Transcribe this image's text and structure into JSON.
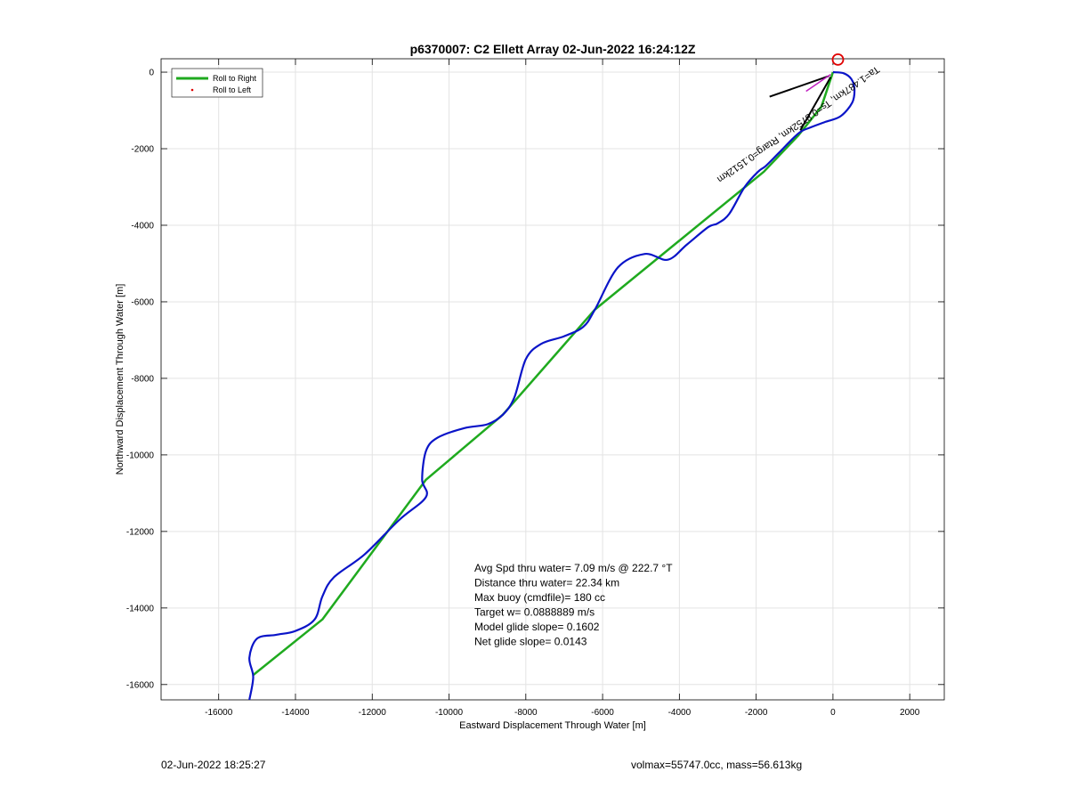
{
  "chart_data": {
    "type": "line",
    "title": "p6370007: C2 Ellett Array 02-Jun-2022 16:24:12Z",
    "xlabel": "Eastward Displacement Through Water [m]",
    "ylabel": "Northward Displacement Through Water [m]",
    "xlim": [
      -17500,
      2900
    ],
    "ylim": [
      -16400,
      350
    ],
    "xticks": [
      -16000,
      -14000,
      -12000,
      -10000,
      -8000,
      -6000,
      -4000,
      -2000,
      0,
      2000
    ],
    "yticks": [
      0,
      -2000,
      -4000,
      -6000,
      -8000,
      -10000,
      -12000,
      -14000,
      -16000
    ],
    "grid": true,
    "legend": {
      "position": "top-left",
      "entries": [
        "Roll to Right",
        "Roll to Left"
      ]
    },
    "colors": {
      "roll_right": "#1faa1f",
      "roll_left": "#e00000",
      "track": "#0a14c8",
      "marker": "#e00000",
      "annotation_lines": "#000000",
      "heading_arrow": "#c020c0"
    },
    "series": [
      {
        "name": "Roll to Right",
        "x": [
          -15100,
          -13300,
          -10600,
          -8600,
          -6200,
          -1800,
          -900,
          -300,
          0
        ],
        "y": [
          -15750,
          -14300,
          -10650,
          -8950,
          -6200,
          -2600,
          -1650,
          -900,
          0
        ]
      },
      {
        "name": "",
        "x": [
          0,
          280,
          480,
          560,
          500,
          200,
          -200,
          -600,
          -900,
          -1400,
          -1750,
          -1950,
          -2300,
          -2700,
          -3000,
          -3250,
          -3800,
          -4300,
          -4900,
          -5600,
          -6200,
          -6500,
          -7000,
          -7600,
          -8000,
          -8300,
          -8600,
          -9000,
          -9600,
          -10300,
          -10600,
          -10700,
          -10600,
          -11300,
          -12200,
          -13000,
          -13300,
          -13500,
          -14000,
          -14500,
          -15000,
          -15200,
          -15100,
          -15200
        ],
        "y": [
          0,
          -30,
          -180,
          -450,
          -800,
          -1150,
          -1300,
          -1450,
          -1600,
          -2100,
          -2450,
          -2600,
          -3000,
          -3700,
          -3950,
          -4050,
          -4500,
          -4900,
          -4750,
          -5100,
          -6200,
          -6650,
          -6900,
          -7100,
          -7500,
          -8500,
          -8950,
          -9200,
          -9300,
          -9550,
          -9900,
          -10650,
          -11100,
          -11700,
          -12600,
          -13200,
          -13700,
          -14300,
          -14600,
          -14700,
          -14800,
          -15300,
          -15800,
          -16400
        ]
      }
    ],
    "start_marker": {
      "x": 130,
      "y": 330
    },
    "heading_lines": [
      {
        "x": [
          -1650,
          -100
        ],
        "y": [
          -640,
          -100
        ]
      },
      {
        "x": [
          -850,
          -60
        ],
        "y": [
          -1520,
          -130
        ]
      }
    ],
    "annotation_text": "Ta=1.487km, Ts=0.8752km, Rtarg=0.1512km",
    "stats": [
      "Avg Spd thru water=  7.09 m/s @ 222.7 °T",
      "Distance thru water= 22.34 km",
      "Max buoy (cmdfile)= 180 cc",
      "Target w= 0.0888889 m/s",
      "Model glide slope= 0.1602",
      "Net glide slope= 0.0143"
    ]
  },
  "footer": {
    "left": "02-Jun-2022 18:25:27",
    "right": "volmax=55747.0cc, mass=56.613kg"
  }
}
